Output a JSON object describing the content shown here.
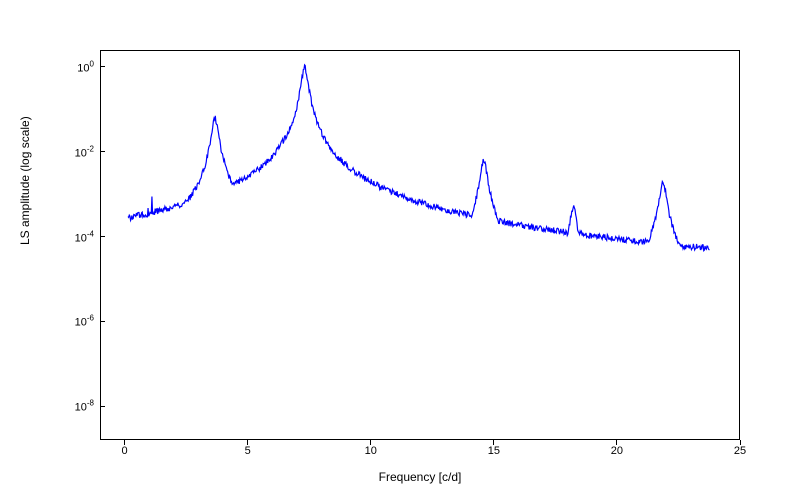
{
  "chart": {
    "type": "line",
    "xlabel": "Frequency [c/d]",
    "ylabel": "LS amplitude (log scale)",
    "background_color": "#ffffff",
    "line_color": "#0000ff",
    "line_width": 1.2,
    "axis_color": "#000000",
    "tick_fontsize": 11,
    "label_fontsize": 12,
    "xlim": [
      -1,
      25
    ],
    "ylim_log10": [
      -8.8,
      0.4
    ],
    "yscale": "log",
    "xticks": [
      0,
      5,
      10,
      15,
      20,
      25
    ],
    "yticks_exp": [
      -8,
      -6,
      -4,
      -2,
      0
    ],
    "peaks": [
      {
        "freq": 3.65,
        "amp_log10": -1.2
      },
      {
        "freq": 7.3,
        "amp_log10": 0.0
      },
      {
        "freq": 14.6,
        "amp_log10": -2.2
      },
      {
        "freq": 18.25,
        "amp_log10": -3.3
      },
      {
        "freq": 21.9,
        "amp_log10": -2.7
      }
    ],
    "noise_floor_log10": -4.2,
    "noise_spread_log10": 1.3,
    "freq_range": [
      0.1,
      23.8
    ],
    "n_points": 900,
    "seed": 17
  }
}
